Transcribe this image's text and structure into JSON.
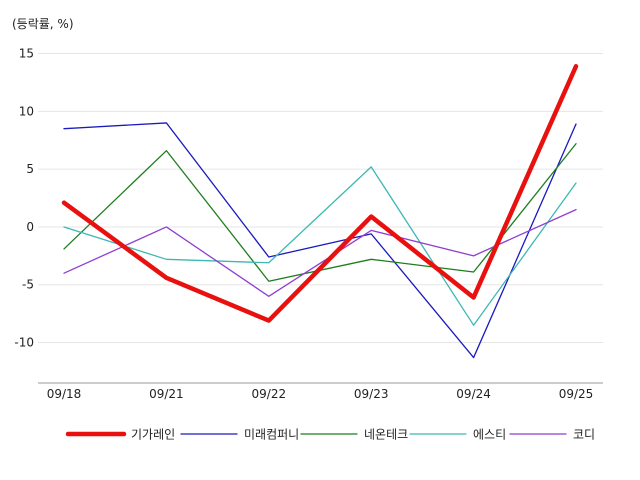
{
  "chart_data": {
    "type": "line",
    "unit_label": "(등락률, %)",
    "categories": [
      "09/18",
      "09/21",
      "09/22",
      "09/23",
      "09/24",
      "09/25"
    ],
    "ylim": [
      -13.5,
      16
    ],
    "yticks": [
      15,
      10,
      5,
      0,
      -5,
      -10
    ],
    "grid": "horizontal",
    "legend_position": "bottom",
    "series": [
      {
        "name": "기가레인",
        "color": "#e8110f",
        "emphasis": true,
        "values": [
          2.1,
          -4.4,
          -8.1,
          0.9,
          -6.1,
          13.9
        ]
      },
      {
        "name": "미래컴퍼니",
        "color": "#1a1abf",
        "emphasis": false,
        "values": [
          8.5,
          9.0,
          -2.6,
          -0.6,
          -11.3,
          8.9
        ]
      },
      {
        "name": "네온테크",
        "color": "#1e7d1e",
        "emphasis": false,
        "values": [
          -1.9,
          6.6,
          -4.7,
          -2.8,
          -3.9,
          7.2
        ]
      },
      {
        "name": "에스티",
        "color": "#3db8b4",
        "emphasis": false,
        "values": [
          0.0,
          -2.8,
          -3.1,
          5.2,
          -8.5,
          3.8
        ]
      },
      {
        "name": "코디",
        "color": "#8e3fd1",
        "emphasis": false,
        "values": [
          -4.0,
          0.0,
          -6.0,
          -0.3,
          -2.5,
          1.5
        ]
      }
    ]
  }
}
